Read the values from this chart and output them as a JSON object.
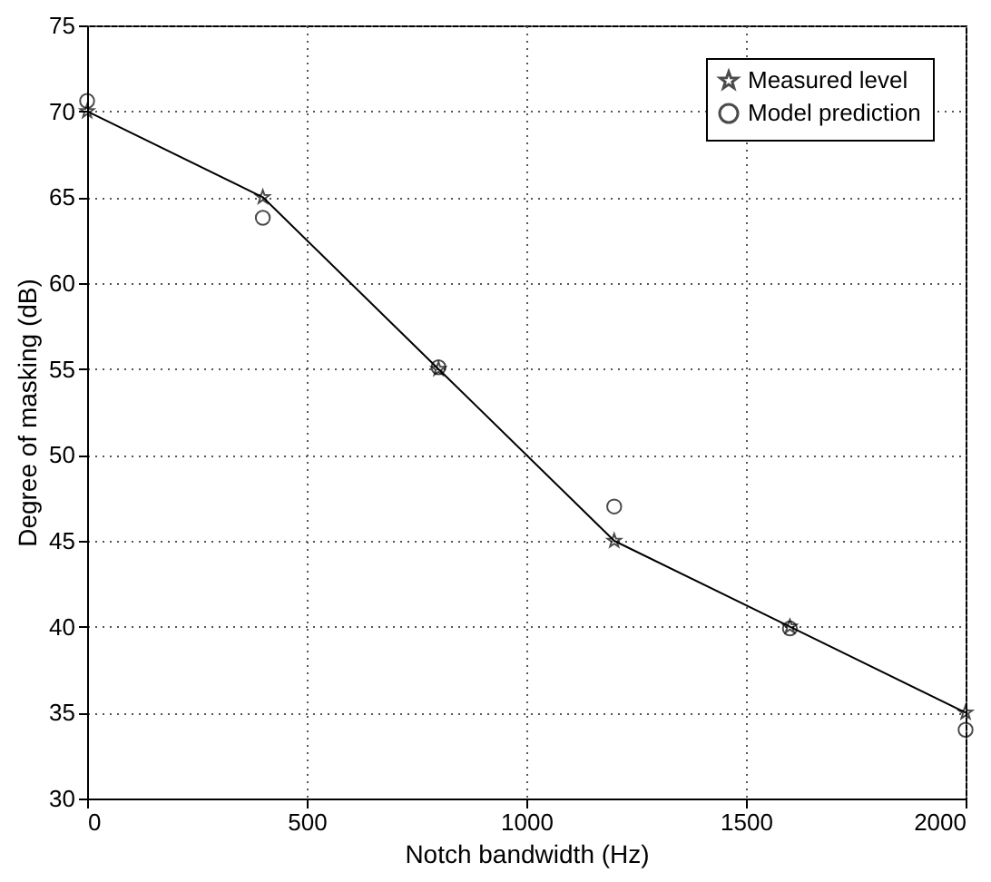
{
  "chart_data": {
    "type": "line",
    "xlabel": "Notch bandwidth (Hz)",
    "ylabel": "Degree of masking (dB)",
    "x": [
      0,
      400,
      800,
      1200,
      1600,
      2000
    ],
    "series": [
      {
        "name": "Measured level",
        "color": "#000000",
        "marker": "star",
        "values": [
          70,
          65,
          55,
          45,
          40,
          35
        ]
      },
      {
        "name": "Model prediction",
        "type": "scatter",
        "color": "#000000",
        "marker": "circle",
        "values": [
          70.6,
          63.8,
          55.1,
          47,
          39.9,
          34
        ]
      }
    ],
    "xlim": [
      0,
      2000
    ],
    "xticks": [
      0,
      500,
      1000,
      1500,
      2000
    ],
    "ylim": [
      30,
      75
    ],
    "yticks": [
      30,
      35,
      40,
      45,
      50,
      55,
      60,
      65,
      70,
      75
    ],
    "grid": true,
    "legend": "top right",
    "line_style": "solid"
  }
}
